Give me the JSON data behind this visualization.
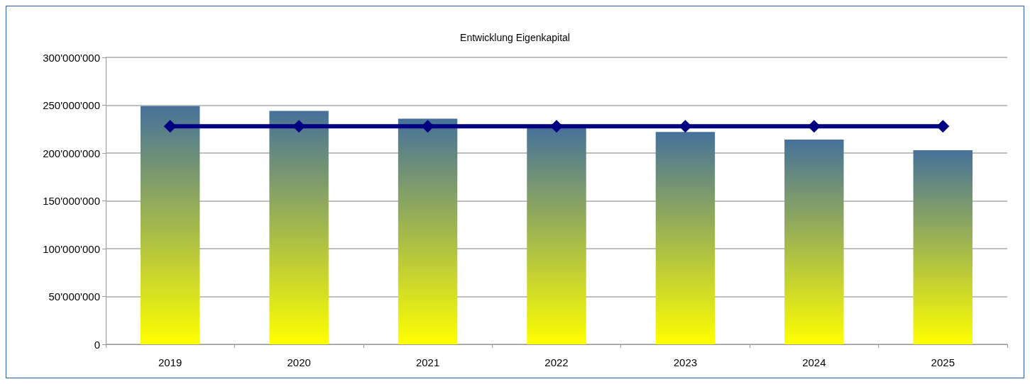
{
  "chart_data": {
    "type": "bar",
    "title": "Entwicklung Eigenkapital",
    "categories": [
      "2019",
      "2020",
      "2021",
      "2022",
      "2023",
      "2024",
      "2025"
    ],
    "series": [
      {
        "color": "#46719a",
        "values": [
          249000000,
          244000000,
          236000000,
          227000000,
          222000000,
          214000000,
          203000000
        ]
      },
      {
        "type": "line",
        "color": "#000080",
        "values": [
          228000000,
          228000000,
          228000000,
          228000000,
          228000000,
          228000000,
          228000000
        ]
      }
    ],
    "ylim": [
      0,
      300000000
    ],
    "yticks": [
      {
        "value": 0,
        "label": "0"
      },
      {
        "value": 50000000,
        "label": "50'000'000"
      },
      {
        "value": 100000000,
        "label": "100'000'000"
      },
      {
        "value": 150000000,
        "label": "150'000'000"
      },
      {
        "value": 200000000,
        "label": "200'000'000"
      },
      {
        "value": 250000000,
        "label": "250'000'000"
      },
      {
        "value": 300000000,
        "label": "300'000'000"
      }
    ],
    "grid": "y",
    "marker": "diamond",
    "line_style": "solid"
  }
}
